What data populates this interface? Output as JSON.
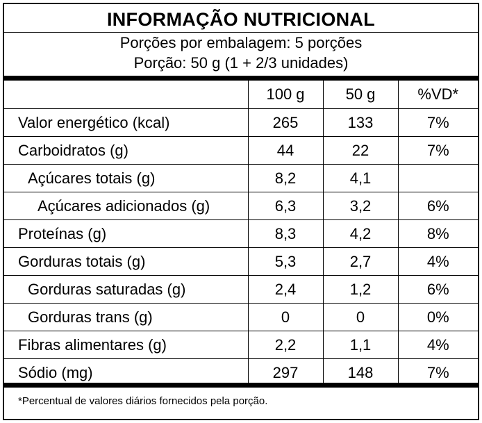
{
  "label": {
    "title": "INFORMAÇÃO NUTRICIONAL",
    "servings_per_package": "Porções por embalagem: 5 porções",
    "serving_size": "Porção: 50 g (1 + 2/3 unidades)",
    "columns": [
      "",
      "100 g",
      "50 g",
      "%VD*"
    ],
    "rows": [
      {
        "name": "Valor energético (kcal)",
        "per_100g": "265",
        "per_portion": "133",
        "dv": "7%",
        "indent": 0
      },
      {
        "name": "Carboidratos (g)",
        "per_100g": "44",
        "per_portion": "22",
        "dv": "7%",
        "indent": 0
      },
      {
        "name": "Açúcares totais (g)",
        "per_100g": "8,2",
        "per_portion": "4,1",
        "dv": "",
        "indent": 1
      },
      {
        "name": "Açúcares adicionados (g)",
        "per_100g": "6,3",
        "per_portion": "3,2",
        "dv": "6%",
        "indent": 2
      },
      {
        "name": "Proteínas (g)",
        "per_100g": "8,3",
        "per_portion": "4,2",
        "dv": "8%",
        "indent": 0
      },
      {
        "name": "Gorduras totais (g)",
        "per_100g": "5,3",
        "per_portion": "2,7",
        "dv": "4%",
        "indent": 0
      },
      {
        "name": "Gorduras saturadas (g)",
        "per_100g": "2,4",
        "per_portion": "1,2",
        "dv": "6%",
        "indent": 1
      },
      {
        "name": "Gorduras trans (g)",
        "per_100g": "0",
        "per_portion": "0",
        "dv": "0%",
        "indent": 1
      },
      {
        "name": "Fibras alimentares (g)",
        "per_100g": "2,2",
        "per_portion": "1,1",
        "dv": "4%",
        "indent": 0
      },
      {
        "name": "Sódio (mg)",
        "per_100g": "297",
        "per_portion": "148",
        "dv": "7%",
        "indent": 0
      }
    ],
    "footnote": "*Percentual de valores diários fornecidos pela porção."
  }
}
